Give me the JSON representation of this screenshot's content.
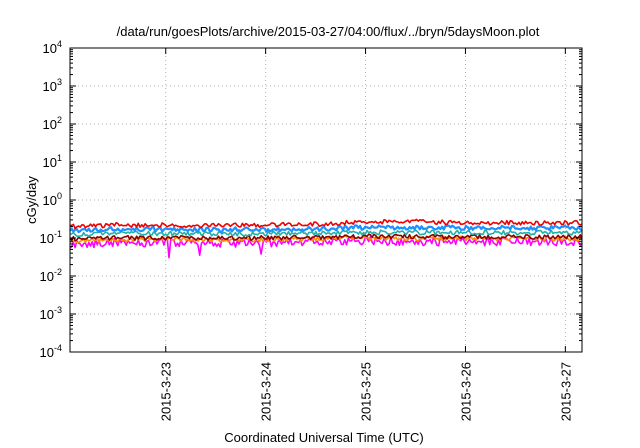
{
  "chart_data": {
    "type": "line",
    "title": "/data/run/goesPlots/archive/2015-03-27/04:00/flux/../bryn/5daysMoon.plot",
    "xlabel": "Coordinated Universal Time (UTC)",
    "ylabel": "cGy/day",
    "yscale": "log",
    "ylim": [
      0.0001,
      10000
    ],
    "y_ticks": [
      {
        "value": 0.0001,
        "base": "10",
        "exp": "-4"
      },
      {
        "value": 0.001,
        "base": "10",
        "exp": "-3"
      },
      {
        "value": 0.01,
        "base": "10",
        "exp": "-2"
      },
      {
        "value": 0.1,
        "base": "10",
        "exp": "-1"
      },
      {
        "value": 1,
        "base": "10",
        "exp": "0"
      },
      {
        "value": 10,
        "base": "10",
        "exp": "1"
      },
      {
        "value": 100,
        "base": "10",
        "exp": "2"
      },
      {
        "value": 1000,
        "base": "10",
        "exp": "3"
      },
      {
        "value": 10000,
        "base": "10",
        "exp": "4"
      }
    ],
    "xlim": [
      "2015-03-22T01:00",
      "2015-03-27T04:00"
    ],
    "x_ticks": [
      {
        "value": "2015-03-23T00:00",
        "label": "2015-3-23"
      },
      {
        "value": "2015-03-24T00:00",
        "label": "2015-3-24"
      },
      {
        "value": "2015-03-25T00:00",
        "label": "2015-3-25"
      },
      {
        "value": "2015-03-26T00:00",
        "label": "2015-3-26"
      },
      {
        "value": "2015-03-27T00:00",
        "label": "2015-3-27"
      }
    ],
    "grid": true,
    "legend": "none",
    "series": [
      {
        "color": "#ff00ff",
        "values": [
          {
            "x": "2015-03-22T01:00",
            "y": 0.07
          },
          {
            "x": "2015-03-22T12:00",
            "y": 0.075
          },
          {
            "x": "2015-03-23T00:00",
            "y": 0.075
          },
          {
            "x": "2015-03-23T12:00",
            "y": 0.072
          },
          {
            "x": "2015-03-24T00:00",
            "y": 0.075
          },
          {
            "x": "2015-03-24T12:00",
            "y": 0.08
          },
          {
            "x": "2015-03-25T00:00",
            "y": 0.085
          },
          {
            "x": "2015-03-25T12:00",
            "y": 0.08
          },
          {
            "x": "2015-03-26T00:00",
            "y": 0.08
          },
          {
            "x": "2015-03-26T12:00",
            "y": 0.08
          },
          {
            "x": "2015-03-27T00:00",
            "y": 0.08
          },
          {
            "x": "2015-03-27T04:00",
            "y": 0.08
          }
        ]
      },
      {
        "color": "#ff8c00",
        "values": [
          {
            "x": "2015-03-22T01:00",
            "y": 0.085
          },
          {
            "x": "2015-03-22T12:00",
            "y": 0.09
          },
          {
            "x": "2015-03-23T00:00",
            "y": 0.09
          },
          {
            "x": "2015-03-23T12:00",
            "y": 0.088
          },
          {
            "x": "2015-03-24T00:00",
            "y": 0.09
          },
          {
            "x": "2015-03-24T12:00",
            "y": 0.095
          },
          {
            "x": "2015-03-25T00:00",
            "y": 0.1
          },
          {
            "x": "2015-03-25T12:00",
            "y": 0.098
          },
          {
            "x": "2015-03-26T00:00",
            "y": 0.097
          },
          {
            "x": "2015-03-26T12:00",
            "y": 0.097
          },
          {
            "x": "2015-03-27T00:00",
            "y": 0.097
          },
          {
            "x": "2015-03-27T04:00",
            "y": 0.095
          }
        ]
      },
      {
        "color": "#8b0000",
        "values": [
          {
            "x": "2015-03-22T01:00",
            "y": 0.095
          },
          {
            "x": "2015-03-22T12:00",
            "y": 0.1
          },
          {
            "x": "2015-03-23T00:00",
            "y": 0.1
          },
          {
            "x": "2015-03-23T12:00",
            "y": 0.098
          },
          {
            "x": "2015-03-24T00:00",
            "y": 0.1
          },
          {
            "x": "2015-03-24T12:00",
            "y": 0.105
          },
          {
            "x": "2015-03-25T00:00",
            "y": 0.11
          },
          {
            "x": "2015-03-25T12:00",
            "y": 0.108
          },
          {
            "x": "2015-03-26T00:00",
            "y": 0.107
          },
          {
            "x": "2015-03-26T12:00",
            "y": 0.107
          },
          {
            "x": "2015-03-27T00:00",
            "y": 0.107
          },
          {
            "x": "2015-03-27T04:00",
            "y": 0.105
          }
        ]
      },
      {
        "color": "#20b2aa",
        "values": [
          {
            "x": "2015-03-22T01:00",
            "y": 0.125
          },
          {
            "x": "2015-03-22T12:00",
            "y": 0.13
          },
          {
            "x": "2015-03-23T00:00",
            "y": 0.13
          },
          {
            "x": "2015-03-23T12:00",
            "y": 0.128
          },
          {
            "x": "2015-03-24T00:00",
            "y": 0.13
          },
          {
            "x": "2015-03-24T12:00",
            "y": 0.135
          },
          {
            "x": "2015-03-25T00:00",
            "y": 0.14
          },
          {
            "x": "2015-03-25T12:00",
            "y": 0.14
          },
          {
            "x": "2015-03-26T00:00",
            "y": 0.138
          },
          {
            "x": "2015-03-26T12:00",
            "y": 0.138
          },
          {
            "x": "2015-03-27T00:00",
            "y": 0.138
          },
          {
            "x": "2015-03-27T04:00",
            "y": 0.135
          }
        ]
      },
      {
        "color": "#1e90ff",
        "values": [
          {
            "x": "2015-03-22T01:00",
            "y": 0.16
          },
          {
            "x": "2015-03-22T12:00",
            "y": 0.17
          },
          {
            "x": "2015-03-23T00:00",
            "y": 0.17
          },
          {
            "x": "2015-03-23T12:00",
            "y": 0.165
          },
          {
            "x": "2015-03-24T00:00",
            "y": 0.17
          },
          {
            "x": "2015-03-24T12:00",
            "y": 0.175
          },
          {
            "x": "2015-03-25T00:00",
            "y": 0.19
          },
          {
            "x": "2015-03-25T12:00",
            "y": 0.19
          },
          {
            "x": "2015-03-26T00:00",
            "y": 0.185
          },
          {
            "x": "2015-03-26T12:00",
            "y": 0.185
          },
          {
            "x": "2015-03-27T00:00",
            "y": 0.185
          },
          {
            "x": "2015-03-27T04:00",
            "y": 0.18
          }
        ]
      },
      {
        "color": "#ee0000",
        "values": [
          {
            "x": "2015-03-22T01:00",
            "y": 0.2
          },
          {
            "x": "2015-03-22T12:00",
            "y": 0.22
          },
          {
            "x": "2015-03-23T00:00",
            "y": 0.22
          },
          {
            "x": "2015-03-23T12:00",
            "y": 0.21
          },
          {
            "x": "2015-03-24T00:00",
            "y": 0.22
          },
          {
            "x": "2015-03-24T12:00",
            "y": 0.23
          },
          {
            "x": "2015-03-25T00:00",
            "y": 0.27
          },
          {
            "x": "2015-03-25T12:00",
            "y": 0.27
          },
          {
            "x": "2015-03-26T00:00",
            "y": 0.25
          },
          {
            "x": "2015-03-26T12:00",
            "y": 0.25
          },
          {
            "x": "2015-03-27T00:00",
            "y": 0.25
          },
          {
            "x": "2015-03-27T04:00",
            "y": 0.25
          }
        ]
      }
    ]
  }
}
